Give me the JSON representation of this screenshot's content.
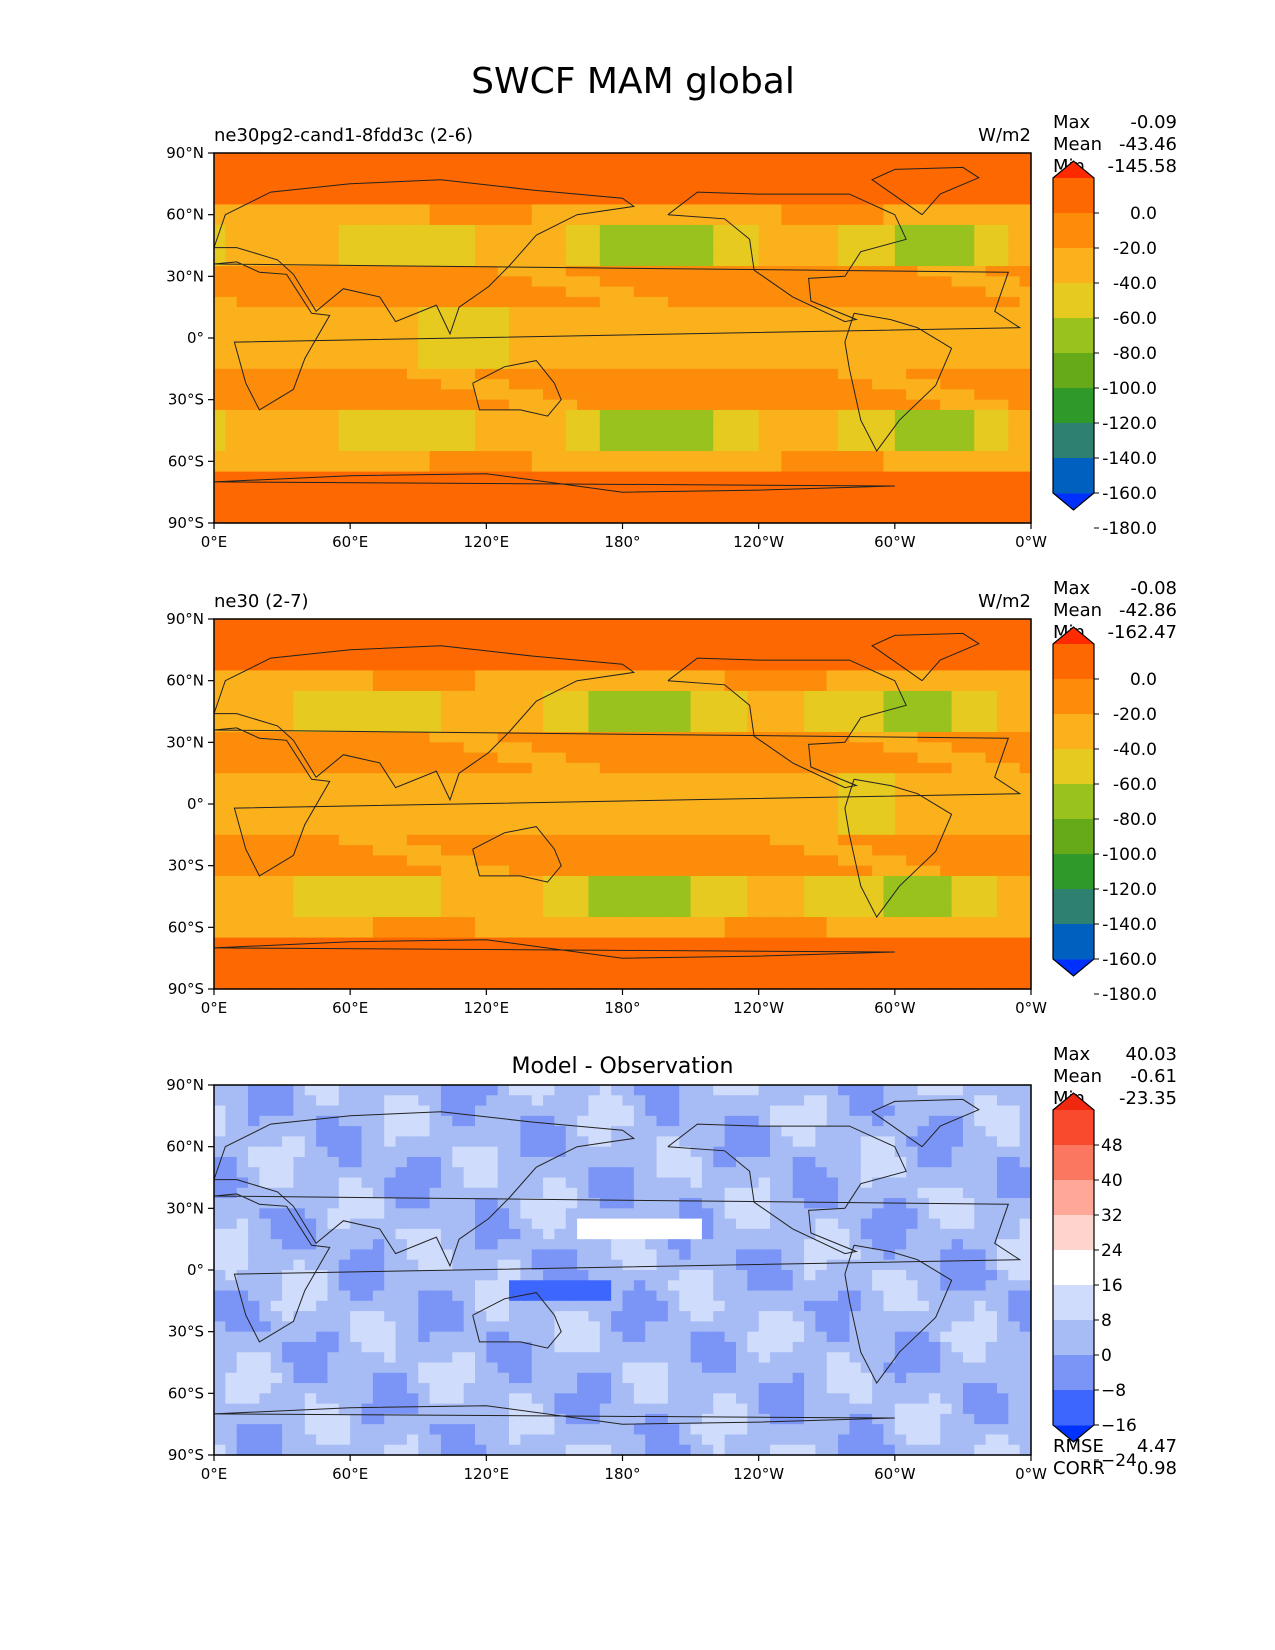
{
  "figure": {
    "title": "SWCF MAM global"
  },
  "colors": {
    "abs_levels": [
      "#0030ff",
      "#0060c0",
      "#2e8070",
      "#2f9a2a",
      "#66aa1a",
      "#99c21e",
      "#e6ca20",
      "#fbb11c",
      "#fc8c0a",
      "#fd6800",
      "#ff2a00"
    ],
    "diff_levels": [
      "#0033ff",
      "#3d66ff",
      "#7b95f7",
      "#a7bcf5",
      "#d0dcfc",
      "#ffffff",
      "#ffd4cc",
      "#ffa898",
      "#fb7760",
      "#f94a2e",
      "#f02810"
    ],
    "coast": "#222222"
  },
  "chart_data": [
    {
      "type": "heatmap",
      "title": "ne30pg2-cand1-8fdd3c (2-6)",
      "units": "W/m2",
      "stats": {
        "max_label": "Max",
        "max": "-0.09",
        "mean_label": "Mean",
        "mean": "-43.46",
        "min_label": "Min",
        "min": "-145.58"
      },
      "xticks": [
        "0°E",
        "60°E",
        "120°E",
        "180°",
        "120°W",
        "60°W",
        "0°W"
      ],
      "yticks": [
        "90°N",
        "60°N",
        "30°N",
        "0°",
        "30°S",
        "60°S",
        "90°S"
      ],
      "xlim": [
        0,
        360
      ],
      "ylim": [
        -90,
        90
      ],
      "colorbar": {
        "levels": [
          "0.0",
          "-20.0",
          "-40.0",
          "-60.0",
          "-80.0",
          "-100.0",
          "-120.0",
          "-140.0",
          "-160.0",
          "-180.0"
        ],
        "extend": "both"
      },
      "field": "abs",
      "variant": 0
    },
    {
      "type": "heatmap",
      "title": "ne30 (2-7)",
      "units": "W/m2",
      "stats": {
        "max_label": "Max",
        "max": "-0.08",
        "mean_label": "Mean",
        "mean": "-42.86",
        "min_label": "Min",
        "min": "-162.47"
      },
      "xticks": [
        "0°E",
        "60°E",
        "120°E",
        "180°",
        "120°W",
        "60°W",
        "0°W"
      ],
      "yticks": [
        "90°N",
        "60°N",
        "30°N",
        "0°",
        "30°S",
        "60°S",
        "90°S"
      ],
      "xlim": [
        0,
        360
      ],
      "ylim": [
        -90,
        90
      ],
      "colorbar": {
        "levels": [
          "0.0",
          "-20.0",
          "-40.0",
          "-60.0",
          "-80.0",
          "-100.0",
          "-120.0",
          "-140.0",
          "-160.0",
          "-180.0"
        ],
        "extend": "both"
      },
      "field": "abs",
      "variant": 1
    },
    {
      "type": "heatmap",
      "title": "Model - Observation",
      "units": "",
      "stats": {
        "max_label": "Max",
        "max": "40.03",
        "mean_label": "Mean",
        "mean": "-0.61",
        "min_label": "Min",
        "min": "-23.35"
      },
      "xticks": [
        "0°E",
        "60°E",
        "120°E",
        "180°",
        "120°W",
        "60°W",
        "0°W"
      ],
      "yticks": [
        "90°N",
        "60°N",
        "30°N",
        "0°",
        "30°S",
        "60°S",
        "90°S"
      ],
      "xlim": [
        0,
        360
      ],
      "ylim": [
        -90,
        90
      ],
      "colorbar": {
        "levels": [
          "48",
          "40",
          "32",
          "24",
          "16",
          "8",
          "0",
          "−8",
          "−16",
          "−24"
        ],
        "extend": "both"
      },
      "metrics": {
        "rmse_label": "RMSE",
        "rmse": "4.47",
        "corr_label": "CORR",
        "corr": "0.98"
      },
      "field": "diff",
      "variant": 2
    }
  ]
}
